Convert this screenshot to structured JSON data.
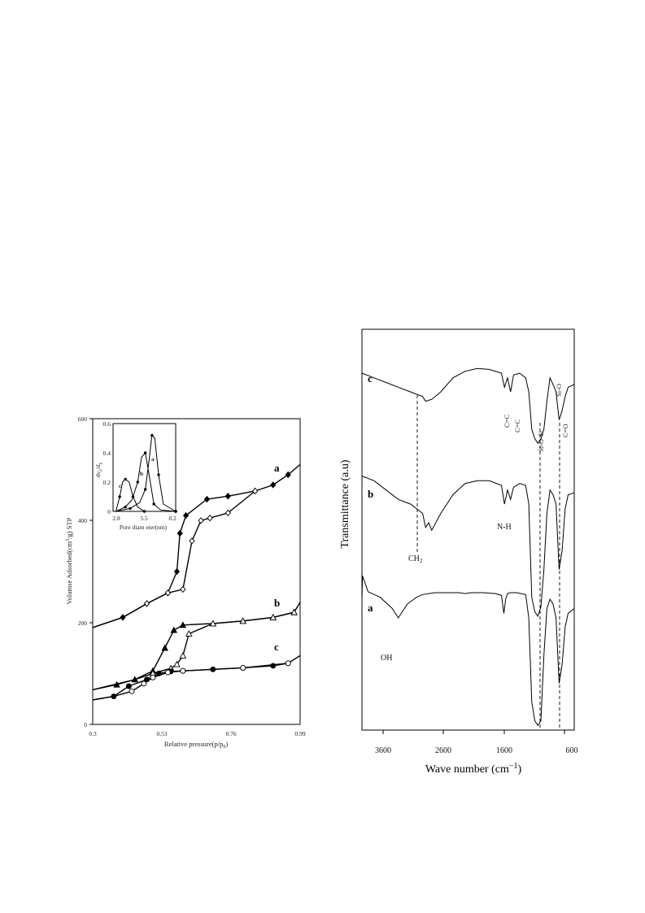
{
  "chart_data": [
    {
      "type": "line",
      "xlabel": "Relative pressure(p/p0)",
      "ylabel": "Volumse Adsorbed(cm3/g) STP",
      "xlim": [
        0.3,
        0.99
      ],
      "ylim": [
        0,
        600
      ],
      "xticks": [
        "0.3",
        "0.53",
        "0.76",
        "0.99"
      ],
      "yticks": [
        "0",
        "200",
        "400",
        "600"
      ],
      "series": [
        {
          "name": "a",
          "marker": "diamond",
          "adsorption": {
            "x": [
              0.3,
              0.4,
              0.48,
              0.55,
              0.58,
              0.59,
              0.61,
              0.68,
              0.75,
              0.84,
              0.9,
              0.95,
              0.99
            ],
            "y": [
              190,
              210,
              237,
              258,
              300,
              375,
              410,
              442,
              448,
              458,
              470,
              490,
              510
            ]
          },
          "desorption": {
            "x": [
              0.3,
              0.4,
              0.48,
              0.55,
              0.6,
              0.63,
              0.66,
              0.69,
              0.75,
              0.84
            ],
            "y": [
              190,
              210,
              237,
              258,
              265,
              360,
              400,
              405,
              415,
              458
            ]
          }
        },
        {
          "name": "b",
          "marker": "triangle",
          "adsorption": {
            "x": [
              0.3,
              0.38,
              0.44,
              0.5,
              0.54,
              0.57,
              0.6,
              0.7,
              0.8,
              0.9,
              0.97,
              0.99
            ],
            "y": [
              68,
              78,
              88,
              105,
              150,
              185,
              195,
              198,
              203,
              210,
              220,
              240
            ]
          },
          "desorption": {
            "x": [
              0.3,
              0.44,
              0.5,
              0.56,
              0.58,
              0.6,
              0.62,
              0.7,
              0.8,
              0.9,
              0.97
            ],
            "y": [
              68,
              88,
              100,
              110,
              118,
              135,
              178,
              198,
              203,
              210,
              220
            ]
          }
        },
        {
          "name": "c",
          "marker": "circle",
          "adsorption": {
            "x": [
              0.3,
              0.37,
              0.42,
              0.48,
              0.52,
              0.56,
              0.6,
              0.7,
              0.8,
              0.9,
              0.95,
              0.99
            ],
            "y": [
              48,
              55,
              75,
              88,
              100,
              104,
              105,
              108,
              111,
              115,
              120,
              135
            ]
          },
          "desorption": {
            "x": [
              0.3,
              0.37,
              0.43,
              0.47,
              0.5,
              0.55,
              0.6,
              0.8,
              0.95
            ],
            "y": [
              48,
              55,
              65,
              80,
              92,
              102,
              105,
              111,
              120
            ]
          }
        }
      ],
      "inset": {
        "xlabel": "Pore diameter(nm)",
        "ylabel": "dvp/dlp",
        "xticks": [
          "2.8",
          "5.5",
          "8.2"
        ],
        "yticks": [
          "0",
          "0.2",
          "0.4",
          "0.6"
        ],
        "xlim": [
          2.2,
          8.8
        ],
        "ylim": [
          0,
          0.6
        ],
        "series": [
          {
            "name": "a",
            "x": [
              2.5,
              4.0,
              5.0,
              5.6,
              6.0,
              6.3,
              6.6,
              7.0,
              7.5,
              8.8
            ],
            "y": [
              0.0,
              0.02,
              0.06,
              0.15,
              0.35,
              0.52,
              0.5,
              0.25,
              0.05,
              0.0
            ]
          },
          {
            "name": "b",
            "x": [
              2.5,
              3.5,
              4.2,
              4.8,
              5.2,
              5.6,
              6.0,
              6.5,
              7.2,
              8.8
            ],
            "y": [
              0.0,
              0.03,
              0.08,
              0.2,
              0.37,
              0.4,
              0.25,
              0.05,
              0.01,
              0.0
            ]
          },
          {
            "name": "c",
            "x": [
              2.5,
              2.9,
              3.2,
              3.5,
              3.9,
              4.3,
              4.8,
              5.5,
              6.5,
              8.8
            ],
            "y": [
              0.0,
              0.1,
              0.2,
              0.22,
              0.2,
              0.1,
              0.03,
              0.0,
              0.0,
              0.0
            ]
          }
        ]
      }
    },
    {
      "type": "line",
      "xlabel": "Wave number (cm⁻¹)",
      "ylabel": "Transmittance (a.u)",
      "xlim": [
        4000,
        500
      ],
      "xticks": [
        "3600",
        "2600",
        "1600",
        "600"
      ],
      "annotations": [
        "OH",
        "CH2",
        "N-H",
        "C=C",
        "C=C",
        "Si-O-Si",
        "Si-O",
        "C=O"
      ],
      "series": [
        {
          "name": "a",
          "x": [
            4000,
            3990,
            3900,
            3700,
            3500,
            3400,
            3250,
            3100,
            3000,
            2800,
            2600,
            2400,
            2300,
            2200,
            2000,
            1800,
            1700,
            1660,
            1630,
            1600,
            1560,
            1450,
            1300,
            1250,
            1200,
            1150,
            1100,
            1050,
            1000,
            950,
            900,
            850,
            800,
            750,
            700,
            650,
            600,
            500
          ],
          "y": [
            20,
            45,
            28,
            22,
            10,
            0,
            15,
            22,
            25,
            27,
            27,
            27,
            26,
            27,
            27,
            26,
            24,
            5,
            20,
            26,
            27,
            27,
            25,
            0,
            -90,
            -110,
            -115,
            -110,
            -40,
            10,
            20,
            15,
            0,
            -70,
            -50,
            -10,
            5,
            10
          ]
        },
        {
          "name": "b",
          "x": [
            4000,
            3800,
            3600,
            3400,
            3200,
            3000,
            2950,
            2900,
            2850,
            2700,
            2500,
            2300,
            2100,
            1900,
            1700,
            1650,
            1600,
            1550,
            1500,
            1400,
            1300,
            1250,
            1200,
            1150,
            1100,
            1050,
            1000,
            950,
            900,
            850,
            800,
            750,
            700,
            650,
            600,
            500
          ],
          "y": [
            30,
            25,
            15,
            5,
            0,
            -10,
            -25,
            -20,
            -28,
            -10,
            10,
            22,
            25,
            25,
            20,
            0,
            15,
            5,
            18,
            22,
            20,
            0,
            -100,
            -115,
            -120,
            -110,
            -70,
            -10,
            15,
            10,
            0,
            -70,
            -50,
            -5,
            10,
            12
          ]
        },
        {
          "name": "c",
          "x": [
            4000,
            3800,
            3600,
            3400,
            3200,
            3000,
            2950,
            2850,
            2700,
            2500,
            2300,
            2100,
            1900,
            1700,
            1650,
            1600,
            1550,
            1500,
            1400,
            1300,
            1250,
            1200,
            1150,
            1100,
            1050,
            1000,
            950,
            900,
            850,
            800,
            750,
            700,
            650,
            600,
            500
          ],
          "y": [
            20,
            15,
            10,
            5,
            0,
            -5,
            -10,
            -8,
            0,
            15,
            22,
            25,
            24,
            20,
            5,
            15,
            0,
            18,
            20,
            15,
            0,
            -40,
            -50,
            -55,
            -50,
            -40,
            -10,
            15,
            8,
            0,
            -30,
            -20,
            -5,
            5,
            8
          ]
        }
      ]
    }
  ],
  "left_panel": {
    "y_axis_label_main": "Volumse Adsorbed(cm",
    "y_axis_label_sup": "3",
    "y_axis_label_end": "/g) STP",
    "x_axis_label_main": "Relative pressure(p/p",
    "x_axis_label_sub": "0",
    "x_axis_label_end": ")",
    "yticks": [
      "0",
      "200",
      "400",
      "600"
    ],
    "xticks": [
      "0.3",
      "0.53",
      "0.76",
      "0.99"
    ],
    "series_labels": [
      "a",
      "b",
      "c"
    ],
    "inset": {
      "ylabel_main": "dv",
      "ylabel_sub1": "p",
      "ylabel_mid": "/d",
      "ylabel_sub2": "p",
      "xlabel": "Pore diam eter(nm)",
      "yticks": [
        "0",
        "0.2",
        "0.4",
        "0.6"
      ],
      "xticks": [
        "2.8",
        "5.5",
        "8.2"
      ],
      "series_labels": [
        "a",
        "b",
        "c"
      ]
    }
  },
  "right_panel": {
    "ylabel": "Transmittance (a.u)",
    "xlabel_main": "Wave number (cm",
    "xlabel_sup": "−1",
    "xlabel_end": ")",
    "xticks": [
      "3600",
      "2600",
      "1600",
      "600"
    ],
    "series_labels": [
      "c",
      "b",
      "a"
    ],
    "annotations": {
      "oh": "OH",
      "ch2_main": "CH",
      "ch2_sub": "2",
      "nh": "N-H",
      "cc1": "C=C",
      "cc2": "C=C",
      "siosi": "Si-O-Si",
      "sio": "Si-O",
      "co": "C=O"
    }
  }
}
